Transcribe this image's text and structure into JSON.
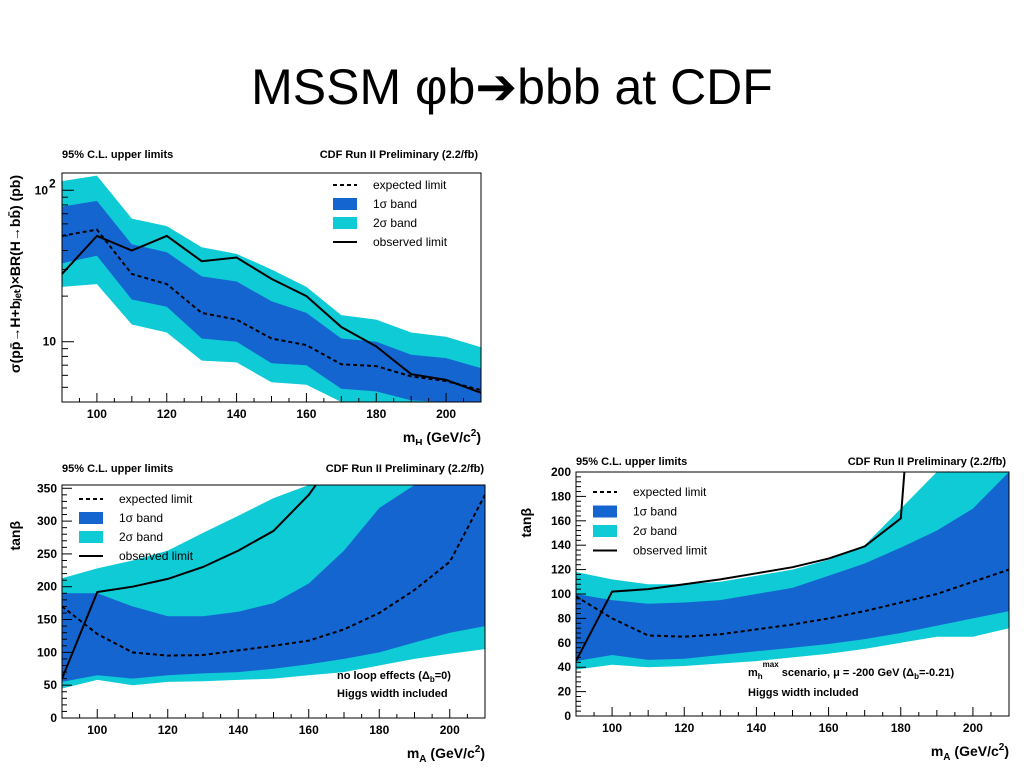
{
  "slide": {
    "title": "MSSM φb➔bbb at CDF"
  },
  "colors": {
    "band_2sigma": "#0fcbd6",
    "band_1sigma": "#1565d0",
    "observed": "#000000",
    "expected": "#000000"
  },
  "chart_data": [
    {
      "type": "line",
      "header_left": "95% C.L. upper limits",
      "header_right": "CDF Run II Preliminary (2.2/fb)",
      "xlabel": "m",
      "xlabel_sub": "H",
      "xlabel_unit": " (GeV/c",
      "xlabel_sup": "2",
      "xlabel_close": ")",
      "ylabel": "σ(pp̄→H+bⱼₑₜ)×BR(H→bb̄) (pb)",
      "xlim": [
        90,
        210
      ],
      "ylim": [
        4,
        130
      ],
      "yscale": "log",
      "x_ticks": [
        "100",
        "120",
        "140",
        "160",
        "180",
        "200"
      ],
      "x_tick_values": [
        100,
        120,
        140,
        160,
        180,
        200
      ],
      "y_ticks": [
        "10",
        "10"
      ],
      "y_tick_values": [
        10,
        100
      ],
      "y_tick_sup": [
        "",
        "2"
      ],
      "legend": [
        "expected limit",
        "1σ band",
        "2σ band",
        "observed limit"
      ],
      "legend_position": "top-right",
      "x": [
        90,
        100,
        110,
        120,
        130,
        140,
        150,
        160,
        170,
        180,
        190,
        200,
        210
      ],
      "band2_low": [
        23,
        24,
        13,
        11.5,
        7.5,
        7.3,
        5.4,
        5.2,
        3.6,
        3.6,
        3.0,
        2.7,
        2.4
      ],
      "band2_high": [
        115,
        125,
        65,
        58,
        42,
        38,
        30,
        23,
        15,
        14,
        11.5,
        10.8,
        9.2
      ],
      "band1_low": [
        33,
        37,
        19,
        17,
        10.5,
        10,
        7.2,
        7,
        4.9,
        4.7,
        4.1,
        3.8,
        3.3
      ],
      "band1_high": [
        78,
        85,
        44,
        39,
        27,
        25,
        18.5,
        15.5,
        10.5,
        10,
        8.2,
        7.8,
        6.7
      ],
      "expected": [
        50,
        55,
        28,
        24,
        15.5,
        14,
        10.5,
        9.5,
        7.1,
        6.9,
        5.9,
        5.5,
        4.8
      ],
      "observed_x": [
        90,
        100,
        110,
        120,
        130,
        140,
        150,
        160,
        170,
        180,
        190,
        200,
        210
      ],
      "observed": [
        28,
        50,
        40,
        50,
        34,
        36,
        26,
        20,
        12.5,
        9.3,
        6.1,
        5.6,
        4.6
      ],
      "annotations": []
    },
    {
      "type": "line",
      "header_left": "95% C.L. upper limits",
      "header_right": "CDF Run II Preliminary (2.2/fb)",
      "xlabel": "m",
      "xlabel_sub": "A",
      "xlabel_unit": " (GeV/c",
      "xlabel_sup": "2",
      "xlabel_close": ")",
      "ylabel": "tanβ",
      "xlim": [
        90,
        210
      ],
      "ylim": [
        0,
        355
      ],
      "yscale": "linear",
      "x_ticks": [
        "100",
        "120",
        "140",
        "160",
        "180",
        "200"
      ],
      "x_tick_values": [
        100,
        120,
        140,
        160,
        180,
        200
      ],
      "y_ticks": [
        "0",
        "50",
        "100",
        "150",
        "200",
        "250",
        "300",
        "350"
      ],
      "y_tick_values": [
        0,
        50,
        100,
        150,
        200,
        250,
        300,
        350
      ],
      "y_tick_sup": [],
      "legend": [
        "expected limit",
        "1σ band",
        "2σ band",
        "observed limit"
      ],
      "legend_position": "top-left",
      "x": [
        90,
        100,
        110,
        120,
        130,
        140,
        150,
        160,
        170,
        180,
        190,
        200,
        210
      ],
      "band2_low": [
        45,
        58,
        50,
        55,
        56,
        58,
        60,
        65,
        70,
        80,
        90,
        98,
        105
      ],
      "band2_high": [
        213,
        228,
        240,
        255,
        282,
        308,
        335,
        355,
        355,
        355,
        355,
        355,
        355
      ],
      "band1_low": [
        55,
        65,
        60,
        65,
        68,
        70,
        75,
        82,
        90,
        100,
        115,
        130,
        140
      ],
      "band1_high": [
        190,
        190,
        170,
        155,
        155,
        162,
        175,
        205,
        255,
        320,
        355,
        355,
        355
      ],
      "expected": [
        170,
        128,
        100,
        95,
        96,
        103,
        110,
        118,
        135,
        160,
        195,
        238,
        340
      ],
      "observed_x": [
        90,
        100,
        110,
        120,
        130,
        140,
        150,
        160,
        162
      ],
      "observed": [
        60,
        192,
        200,
        212,
        230,
        255,
        285,
        340,
        355
      ],
      "annotations": [
        "no loop effects (Δ",
        "b",
        "=0)",
        "Higgs width included"
      ]
    },
    {
      "type": "line",
      "header_left": "95% C.L. upper limits",
      "header_right": "CDF Run II Preliminary (2.2/fb)",
      "xlabel": "m",
      "xlabel_sub": "A",
      "xlabel_unit": " (GeV/c",
      "xlabel_sup": "2",
      "xlabel_close": ")",
      "ylabel": "tanβ",
      "xlim": [
        90,
        210
      ],
      "ylim": [
        0,
        200
      ],
      "yscale": "linear",
      "x_ticks": [
        "100",
        "120",
        "140",
        "160",
        "180",
        "200"
      ],
      "x_tick_values": [
        100,
        120,
        140,
        160,
        180,
        200
      ],
      "y_ticks": [
        "0",
        "20",
        "40",
        "60",
        "80",
        "100",
        "120",
        "140",
        "160",
        "180",
        "200"
      ],
      "y_tick_values": [
        0,
        20,
        40,
        60,
        80,
        100,
        120,
        140,
        160,
        180,
        200
      ],
      "y_tick_sup": [],
      "legend": [
        "expected limit",
        "1σ band",
        "2σ band",
        "observed limit"
      ],
      "legend_position": "top-left",
      "x": [
        90,
        100,
        110,
        120,
        130,
        140,
        150,
        160,
        170,
        180,
        190,
        200,
        210
      ],
      "band2_low": [
        38,
        42,
        40,
        41,
        43,
        45,
        48,
        51,
        55,
        60,
        65,
        65,
        72
      ],
      "band2_high": [
        118,
        112,
        108,
        108,
        110,
        115,
        120,
        128,
        140,
        170,
        200,
        200,
        200
      ],
      "band1_low": [
        45,
        50,
        46,
        47,
        50,
        53,
        56,
        59,
        63,
        68,
        74,
        80,
        86
      ],
      "band1_high": [
        100,
        95,
        92,
        93,
        95,
        100,
        105,
        115,
        125,
        138,
        152,
        170,
        200
      ],
      "expected": [
        98,
        80,
        66,
        65,
        67,
        71,
        75,
        80,
        86,
        93,
        100,
        110,
        120
      ],
      "observed_x": [
        90,
        100,
        110,
        120,
        130,
        140,
        150,
        160,
        170,
        180,
        181
      ],
      "observed": [
        45,
        102,
        104,
        108,
        112,
        117,
        122,
        129,
        139,
        162,
        200
      ],
      "annotations": [
        "m",
        "h",
        "max",
        " scenario, μ = -200 GeV (Δ",
        "b",
        "=-0.21)",
        "Higgs width included"
      ]
    }
  ]
}
